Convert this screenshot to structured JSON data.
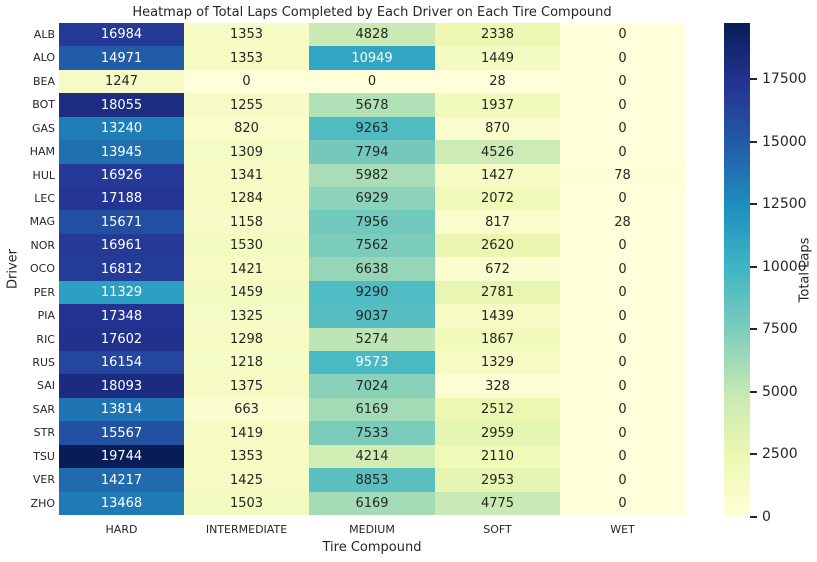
{
  "colors": {
    "background": "#ffffff",
    "text": "#262626",
    "annotation_dark": "#262626",
    "annotation_light": "#ffffff"
  },
  "chart_data": {
    "type": "heatmap",
    "title": "Heatmap of Total Laps Completed by Each Driver on Each Tire Compound",
    "xlabel": "Tire Compound",
    "ylabel": "Driver",
    "colorbar_label": "Total Laps",
    "colormap": {
      "name": "YlGnBu",
      "stops": [
        "#ffffd9",
        "#edf8b1",
        "#c7e9b4",
        "#7fcdbb",
        "#41b6c4",
        "#1d91c0",
        "#225ea8",
        "#253494",
        "#081d58"
      ]
    },
    "vmin": 0,
    "vmax": 19744,
    "colorbar_ticks": [
      0,
      2500,
      5000,
      7500,
      10000,
      12500,
      15000,
      17500
    ],
    "categories": [
      "HARD",
      "INTERMEDIATE",
      "MEDIUM",
      "SOFT",
      "WET"
    ],
    "rows": [
      "ALB",
      "ALO",
      "BEA",
      "BOT",
      "GAS",
      "HAM",
      "HUL",
      "LEC",
      "MAG",
      "NOR",
      "OCO",
      "PER",
      "PIA",
      "RIC",
      "RUS",
      "SAI",
      "SAR",
      "STR",
      "TSU",
      "VER",
      "ZHO"
    ],
    "values": [
      [
        16984,
        1353,
        4828,
        2338,
        0
      ],
      [
        14971,
        1353,
        10949,
        1449,
        0
      ],
      [
        1247,
        0,
        0,
        28,
        0
      ],
      [
        18055,
        1255,
        5678,
        1937,
        0
      ],
      [
        13240,
        820,
        9263,
        870,
        0
      ],
      [
        13945,
        1309,
        7794,
        4526,
        0
      ],
      [
        16926,
        1341,
        5982,
        1427,
        78
      ],
      [
        17188,
        1284,
        6929,
        2072,
        0
      ],
      [
        15671,
        1158,
        7956,
        817,
        28
      ],
      [
        16961,
        1530,
        7562,
        2620,
        0
      ],
      [
        16812,
        1421,
        6638,
        672,
        0
      ],
      [
        11329,
        1459,
        9290,
        2781,
        0
      ],
      [
        17348,
        1325,
        9037,
        1439,
        0
      ],
      [
        17602,
        1298,
        5274,
        1867,
        0
      ],
      [
        16154,
        1218,
        9573,
        1329,
        0
      ],
      [
        18093,
        1375,
        7024,
        328,
        0
      ],
      [
        13814,
        663,
        6169,
        2512,
        0
      ],
      [
        15567,
        1419,
        7533,
        2959,
        0
      ],
      [
        19744,
        1353,
        4214,
        2110,
        0
      ],
      [
        14217,
        1425,
        8853,
        2953,
        0
      ],
      [
        13468,
        1503,
        6169,
        4775,
        0
      ]
    ]
  }
}
